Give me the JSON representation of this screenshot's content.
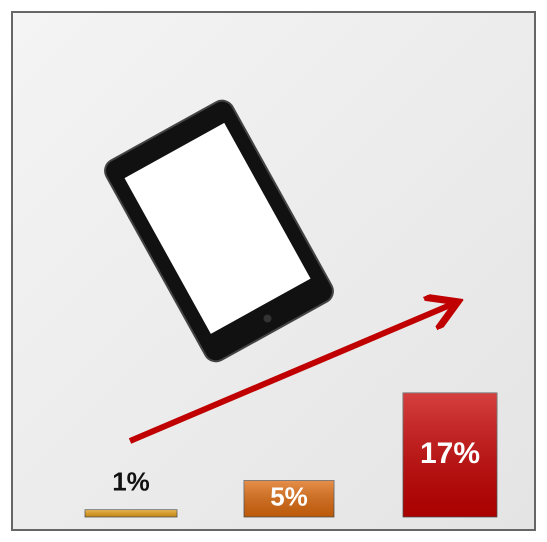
{
  "chart_data": {
    "type": "bar",
    "categories": [
      null,
      null,
      null
    ],
    "values": [
      1,
      5,
      17
    ],
    "value_labels": [
      "1%",
      "5%",
      "17%"
    ],
    "colors": [
      "#e8a21c",
      "#de6a0e",
      "#c80000"
    ]
  }
}
